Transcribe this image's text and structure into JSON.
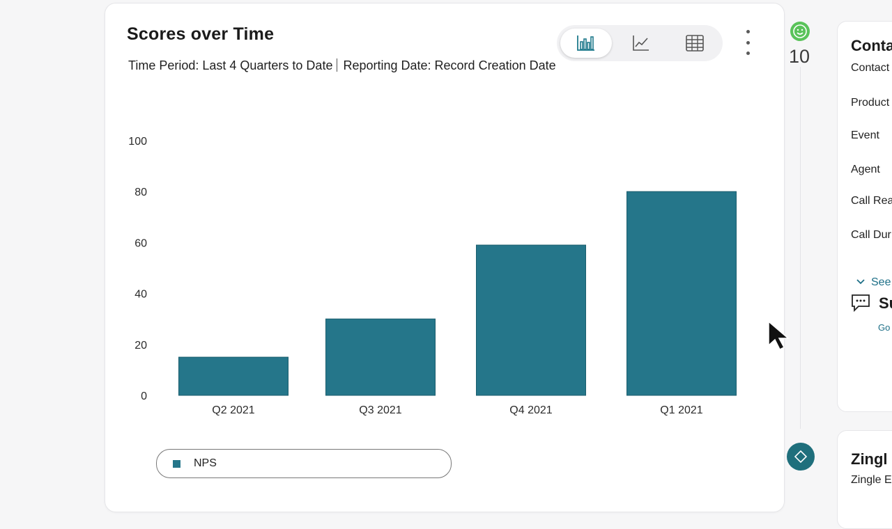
{
  "card": {
    "title": "Scores over Time",
    "time_period": "Time Period: Last 4 Quarters to Date",
    "reporting_date": "Reporting Date: Record Creation Date",
    "view_toggles": [
      "bar-chart-icon",
      "line-chart-icon",
      "table-icon"
    ],
    "active_view": "bar-chart-icon",
    "more_menu_icon": "kebab-menu-icon"
  },
  "chart_data": {
    "type": "bar",
    "categories": [
      "Q2 2021",
      "Q3 2021",
      "Q4 2021",
      "Q1 2021"
    ],
    "series": [
      {
        "name": "NPS",
        "values": [
          15,
          30,
          59,
          80
        ]
      }
    ],
    "ylim": [
      0,
      100
    ],
    "yticks": [
      0,
      20,
      40,
      60,
      80,
      100
    ],
    "xlabel": "",
    "ylabel": "",
    "grid": false,
    "legend": "bottom-left",
    "color": "#25768a"
  },
  "rail": {
    "icon": "smiley-face-icon",
    "score": "10",
    "bottom_icon": "diamond-icon"
  },
  "side_panel": {
    "heading": "Conta",
    "fields": [
      "Contact",
      "Product",
      "Event",
      "Agent",
      "Call Rea",
      "Call Dur"
    ],
    "see_more": "See",
    "section_heading": "Su",
    "section_link": "Go",
    "bottom_heading": "Zingl",
    "bottom_sub": "Zingle E"
  }
}
